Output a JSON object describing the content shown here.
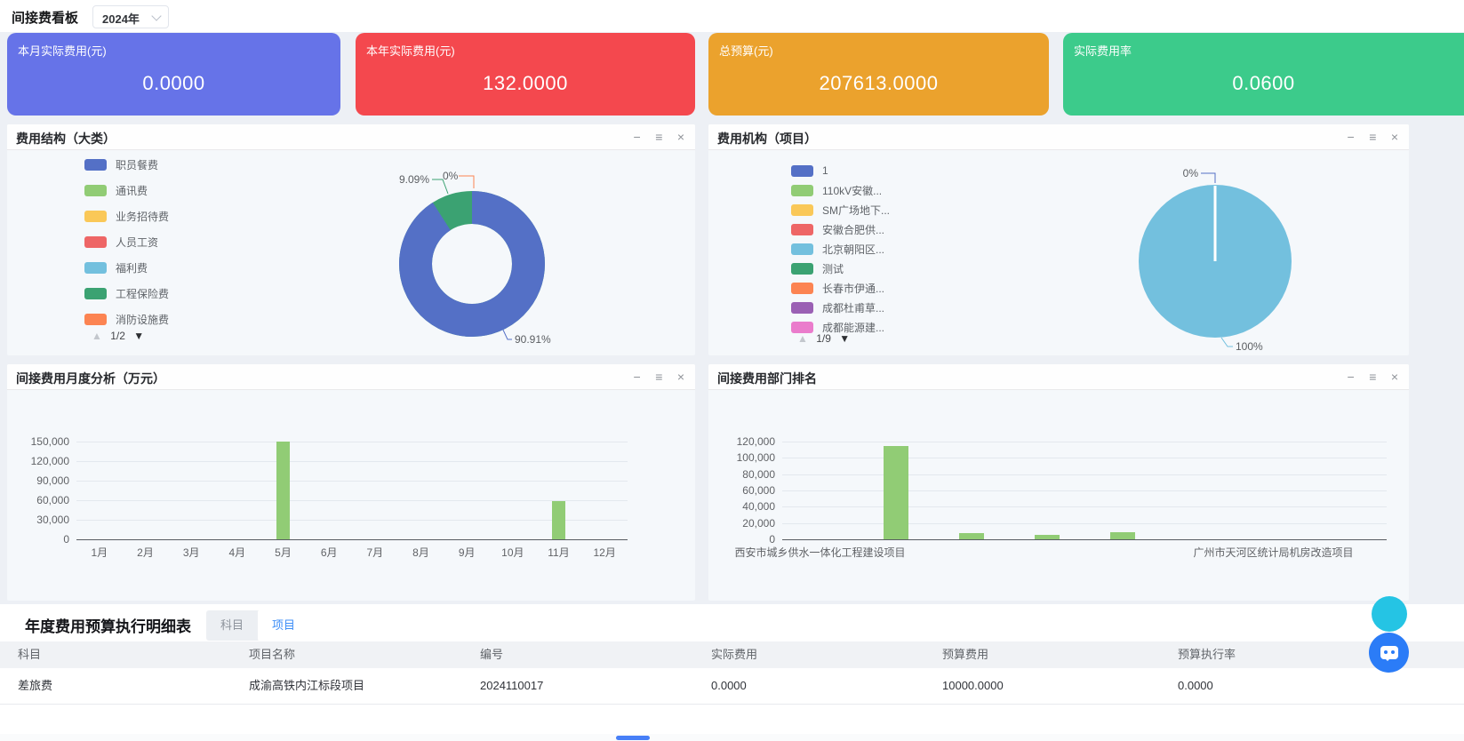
{
  "header": {
    "title": "间接费看板",
    "year": "2024年"
  },
  "icons": {
    "minimize": "−",
    "menu": "≡",
    "close": "×",
    "page_up": "▲",
    "page_down": "▼"
  },
  "palette": {
    "blue": "#5470C6",
    "green": "#91CC75",
    "yellow": "#FAC858",
    "red": "#EE6666",
    "light_blue": "#73C0DE",
    "teal": "#3BA272",
    "orange": "#FC8452",
    "purple": "#9A60B4",
    "pink": "#EA7CCC"
  },
  "kpi_cards": [
    {
      "label": "本月实际费用(元)",
      "value": "0.0000",
      "color": "#6673e8"
    },
    {
      "label": "本年实际费用(元)",
      "value": "132.0000",
      "color": "#f4484e"
    },
    {
      "label": "总预算(元)",
      "value": "207613.0000",
      "color": "#eba22d"
    },
    {
      "label": "实际费用率",
      "value": "0.0600",
      "color": "#3ccb8b"
    }
  ],
  "panels": {
    "cost_structure": {
      "title": "费用结构（大类）",
      "legend_page": "1/2"
    },
    "cost_org": {
      "title": "费用机构（项目）",
      "legend_page": "1/9"
    },
    "monthly": {
      "title": "间接费用月度分析（万元）"
    },
    "dept_rank": {
      "title": "间接费用部门排名"
    }
  },
  "chart_data": [
    {
      "id": "cost-structure-donut",
      "type": "pie",
      "title": "费用结构（大类）",
      "donut": true,
      "legend_position": "left",
      "slices": [
        {
          "name": "职员餐费",
          "pct": 90.91,
          "color": "#5470C6",
          "label": "90.91%"
        },
        {
          "name": "工程保险费",
          "pct": 9.09,
          "color": "#3BA272",
          "label": "9.09%"
        },
        {
          "name": "消防设施费",
          "pct": 0,
          "color": "#FC8452",
          "label": "0%"
        }
      ],
      "legend": [
        {
          "label": "职员餐费",
          "color": "#5470C6"
        },
        {
          "label": "通讯费",
          "color": "#91CC75"
        },
        {
          "label": "业务招待费",
          "color": "#FAC858"
        },
        {
          "label": "人员工资",
          "color": "#EE6666"
        },
        {
          "label": "福利费",
          "color": "#73C0DE"
        },
        {
          "label": "工程保险费",
          "color": "#3BA272"
        },
        {
          "label": "消防设施费",
          "color": "#FC8452"
        }
      ],
      "legend_page": "1/2"
    },
    {
      "id": "cost-org-pie",
      "type": "pie",
      "title": "费用机构（项目）",
      "donut": false,
      "legend_position": "left",
      "slices": [
        {
          "name": "北京朝阳区...",
          "pct": 100,
          "color": "#73C0DE",
          "label": "100%"
        },
        {
          "name": "1",
          "pct": 0,
          "color": "#5470C6",
          "label": "0%"
        }
      ],
      "legend": [
        {
          "label": "1",
          "color": "#5470C6"
        },
        {
          "label": "110kV安徽...",
          "color": "#91CC75"
        },
        {
          "label": "SM广场地下...",
          "color": "#FAC858"
        },
        {
          "label": "安徽合肥供...",
          "color": "#EE6666"
        },
        {
          "label": "北京朝阳区...",
          "color": "#73C0DE"
        },
        {
          "label": "测试",
          "color": "#3BA272"
        },
        {
          "label": "长春市伊通...",
          "color": "#FC8452"
        },
        {
          "label": "成都杜甫草...",
          "color": "#9A60B4"
        },
        {
          "label": "成都能源建...",
          "color": "#EA7CCC"
        }
      ],
      "legend_page": "1/9"
    },
    {
      "id": "monthly-bar",
      "type": "bar",
      "title": "间接费用月度分析（万元）",
      "categories": [
        "1月",
        "2月",
        "3月",
        "4月",
        "5月",
        "6月",
        "7月",
        "8月",
        "9月",
        "10月",
        "11月",
        "12月"
      ],
      "values": [
        0,
        0,
        0,
        0,
        150000,
        0,
        0,
        0,
        0,
        0,
        58000,
        0
      ],
      "ylim": [
        0,
        150000
      ],
      "ytick_labels": [
        "0",
        "30,000",
        "60,000",
        "90,000",
        "120,000",
        "150,000"
      ],
      "bar_color": "#91CC75",
      "grid": true,
      "legend_position": "none"
    },
    {
      "id": "dept-rank-bar",
      "type": "bar",
      "title": "间接费用部门排名",
      "categories": [
        "西安市城乡供水一体化工程建设项目",
        "",
        "",
        "",
        "",
        "",
        "广州市天河区统计局机房改造项目",
        ""
      ],
      "values": [
        0,
        115000,
        7500,
        5500,
        9000,
        0,
        0,
        0
      ],
      "ylim": [
        0,
        120000
      ],
      "ytick_labels": [
        "0",
        "20,000",
        "40,000",
        "60,000",
        "80,000",
        "100,000",
        "120,000"
      ],
      "bar_color": "#91CC75",
      "grid": true,
      "legend_position": "none"
    }
  ],
  "table": {
    "title": "年度费用预算执行明细表",
    "tabs": [
      {
        "label": "科目",
        "active": false
      },
      {
        "label": "项目",
        "active": true
      }
    ],
    "columns": [
      "科目",
      "项目名称",
      "编号",
      "实际费用",
      "预算费用",
      "预算执行率"
    ],
    "rows": [
      [
        "差旅费",
        "成渝高铁内江标段项目",
        "2024110017",
        "0.0000",
        "10000.0000",
        "0.0000"
      ]
    ]
  },
  "scrollbar_color": "#477ff7",
  "fab_colors": {
    "top": "#25c4e4",
    "bottom": "#2b7cf7"
  }
}
